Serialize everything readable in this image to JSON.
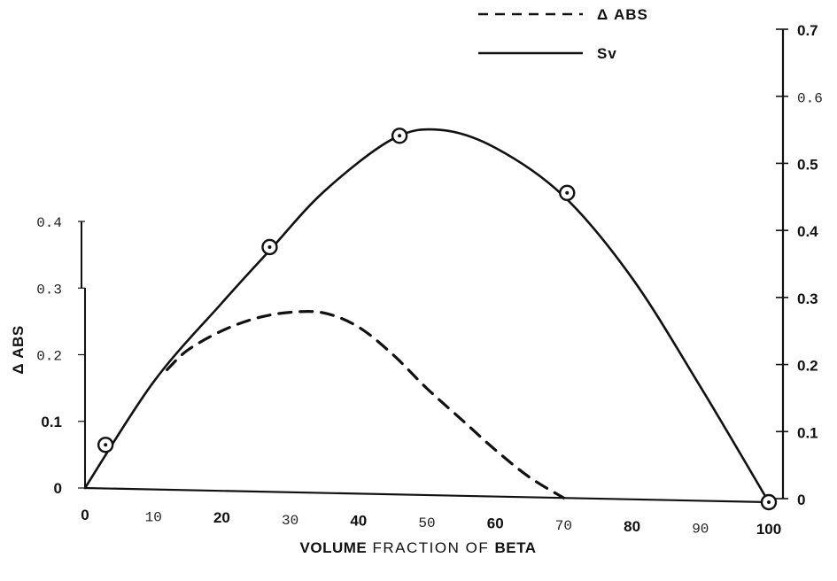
{
  "chart_data": {
    "type": "line",
    "xlabel": "VOLUME FRACTION OF BETA",
    "xlabel_parts": [
      "VOLUME",
      "FRACTION OF",
      "BETA"
    ],
    "ylabel_left": "Δ ABS",
    "ylabel_right": "",
    "x_ticks": [
      "0",
      "10",
      "20",
      "30",
      "40",
      "50",
      "60",
      "70",
      "80",
      "90",
      "100"
    ],
    "y_left_ticks": [
      "0",
      "0.1",
      "0.2",
      "0.3",
      "0.4"
    ],
    "y_right_ticks": [
      "0",
      "0.1",
      "0.2",
      "0.3",
      "0.4",
      "0.5",
      "0.6",
      "0.7"
    ],
    "xlim": [
      0,
      100
    ],
    "ylim_left": [
      0,
      0.4
    ],
    "ylim_right": [
      0,
      0.7
    ],
    "legend_position": "top-right",
    "series": [
      {
        "name": "Δ ABS",
        "axis": "left",
        "style": "dashed",
        "x": [
          12,
          15,
          20,
          25,
          30,
          35,
          40,
          45,
          50,
          55,
          60,
          65,
          70
        ],
        "y": [
          0.18,
          0.21,
          0.24,
          0.26,
          0.27,
          0.27,
          0.25,
          0.21,
          0.16,
          0.115,
          0.07,
          0.03,
          0.0
        ]
      },
      {
        "name": "Sv",
        "axis": "right",
        "style": "solid",
        "x": [
          0,
          10,
          20,
          27,
          35,
          45,
          52,
          60,
          70,
          80,
          90,
          100
        ],
        "y": [
          0.0,
          0.16,
          0.28,
          0.36,
          0.45,
          0.53,
          0.545,
          0.52,
          0.45,
          0.33,
          0.17,
          0.0
        ]
      }
    ],
    "markers": {
      "series": "Sv",
      "x": [
        3,
        27,
        46,
        70.5,
        100
      ],
      "y": [
        0.065,
        0.365,
        0.535,
        0.455,
        0.0
      ]
    }
  }
}
